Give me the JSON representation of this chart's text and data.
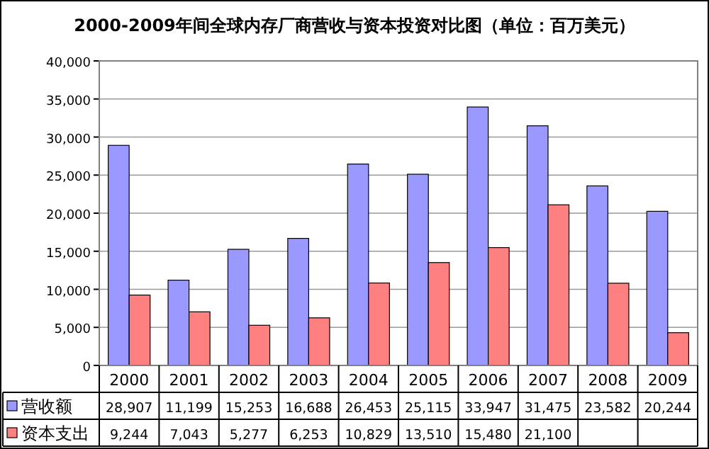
{
  "chart_data": {
    "type": "bar",
    "title": "2000-2009年间全球内存厂商营收与资本投资对比图（单位：百万美元）",
    "categories": [
      "2000",
      "2001",
      "2002",
      "2003",
      "2004",
      "2005",
      "2006",
      "2007",
      "2008",
      "2009"
    ],
    "series": [
      {
        "name": "营收额",
        "color": "#9999ff",
        "values": [
          28907,
          11199,
          15253,
          16688,
          26453,
          25115,
          33947,
          31475,
          23582,
          20244
        ],
        "value_labels": [
          "28,907",
          "11,199",
          "15,253",
          "16,688",
          "26,453",
          "25,115",
          "33,947",
          "31,475",
          "23,582",
          "20,244"
        ]
      },
      {
        "name": "资本支出",
        "color": "#ff8080",
        "values": [
          9244,
          7043,
          5277,
          6253,
          10829,
          13510,
          15480,
          21100,
          10800,
          4300
        ],
        "value_labels": [
          "9,244",
          "7,043",
          "5,277",
          "6,253",
          "10,829",
          "13,510",
          "15,480",
          "21,100",
          null,
          null
        ]
      }
    ],
    "ylim": [
      0,
      40000
    ],
    "yticks": [
      {
        "value": 0,
        "label": "0"
      },
      {
        "value": 5000,
        "label": "5,000"
      },
      {
        "value": 10000,
        "label": "10,000"
      },
      {
        "value": 15000,
        "label": "15,000"
      },
      {
        "value": 20000,
        "label": "20,000"
      },
      {
        "value": 25000,
        "label": "25,000"
      },
      {
        "value": 30000,
        "label": "30,000"
      },
      {
        "value": 35000,
        "label": "35,000"
      },
      {
        "value": 40000,
        "label": "40,000"
      }
    ],
    "grid": "y",
    "legend": "bottom left"
  }
}
